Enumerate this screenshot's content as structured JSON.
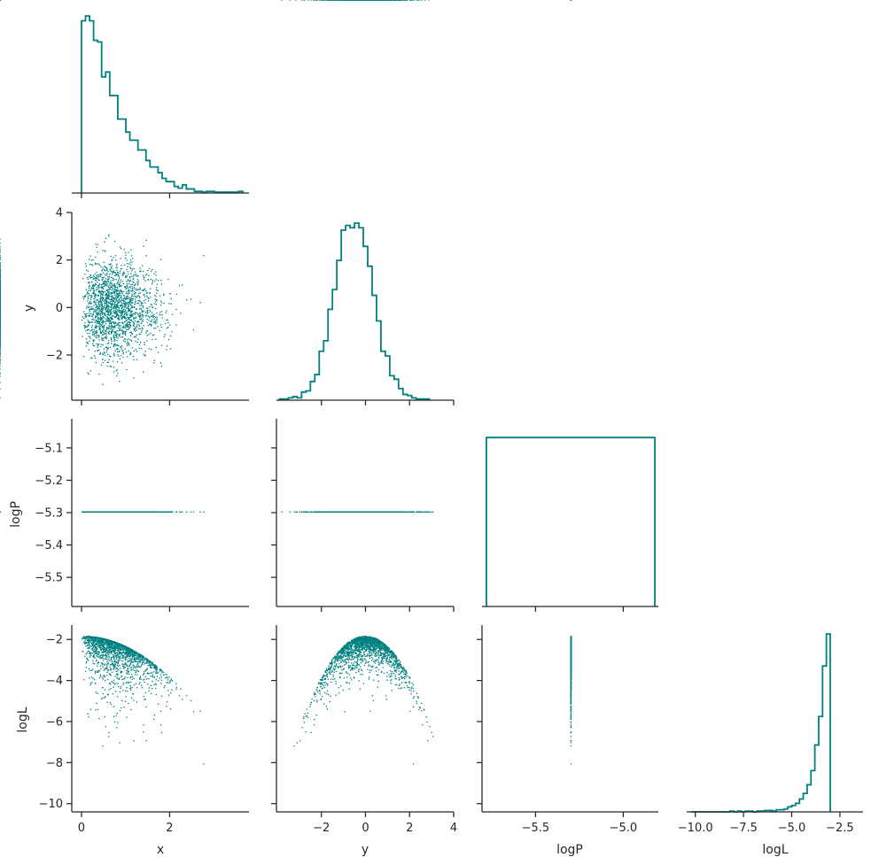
{
  "chart_data": {
    "type": "corner-pairplot",
    "variables": [
      "x",
      "y",
      "logP",
      "logL"
    ],
    "color": "#008080",
    "labels": {
      "x": "x",
      "y": "y",
      "logP": "logP",
      "logL": "logL"
    },
    "ranges": {
      "x": [
        -0.2,
        3.8
      ],
      "y": [
        -4,
        4
      ],
      "logP": [
        -5.8,
        -4.8
      ],
      "logL": [
        -10.4,
        -1.3
      ]
    },
    "scatter_ranges": {
      "y": [
        -3.9,
        4.0
      ],
      "logP": [
        -5.59,
        -5.01
      ]
    },
    "ticks": {
      "x": {
        "values": [
          0,
          2
        ],
        "labels": [
          "0",
          "2"
        ]
      },
      "y_bottom": {
        "values": [
          -2,
          0,
          2,
          4
        ],
        "labels": [
          "−2",
          "0",
          "2",
          "4"
        ]
      },
      "y_left": {
        "values": [
          -2,
          0,
          2,
          4
        ],
        "labels": [
          "−2",
          "0",
          "2",
          "4"
        ]
      },
      "logP_bottom": {
        "values": [
          -5.5,
          -5.0
        ],
        "labels": [
          "−5.5",
          "−5.0"
        ]
      },
      "logP_left": {
        "values": [
          -5.1,
          -5.2,
          -5.3,
          -5.4,
          -5.5
        ],
        "labels": [
          "−5.1",
          "−5.2",
          "−5.3",
          "−5.4",
          "−5.5"
        ]
      },
      "logL_bottom": {
        "values": [
          -10,
          -7.5,
          -5,
          -2.5
        ],
        "labels": [
          "−10.0",
          "−7.5",
          "−5.0",
          "−2.5"
        ]
      },
      "logL_left": {
        "values": [
          -2,
          -4,
          -6,
          -8,
          -10
        ],
        "labels": [
          "−2",
          "−4",
          "−6",
          "−8",
          "−10"
        ]
      }
    },
    "histograms": {
      "x": {
        "bin_width": 0.0915,
        "start": 0.0,
        "counts": [
          212,
          218,
          212,
          188,
          186,
          143,
          149,
          120,
          120,
          91,
          91,
          75,
          65,
          65,
          53,
          53,
          40,
          32,
          32,
          25,
          18,
          14,
          14,
          8,
          6,
          10,
          5,
          5,
          2,
          2,
          1,
          2,
          2,
          1,
          1,
          1,
          1,
          1,
          1,
          2
        ]
      },
      "y": {
        "bin_width": 0.2,
        "start": -3.9,
        "counts": [
          1,
          1,
          2,
          3,
          2,
          7,
          8,
          16,
          22,
          42,
          51,
          78,
          95,
          120,
          146,
          150,
          148,
          152,
          148,
          132,
          115,
          90,
          68,
          42,
          38,
          21,
          18,
          10,
          5,
          4,
          2,
          1,
          1,
          1
        ]
      },
      "logP": {
        "bin_edges": [
          -5.78,
          -4.82
        ],
        "level": 0.9
      },
      "logL": {
        "bin_width": 0.2,
        "start": -10.2,
        "counts": [
          0,
          0,
          0,
          0,
          0,
          0,
          0,
          0,
          0,
          0,
          1,
          0,
          1,
          0,
          1,
          1,
          0,
          1,
          1,
          2,
          2,
          1,
          3,
          3,
          4,
          7,
          9,
          12,
          18,
          26,
          38,
          58,
          94,
          134,
          205,
          250
        ]
      }
    },
    "scatter_points": 2500
  }
}
